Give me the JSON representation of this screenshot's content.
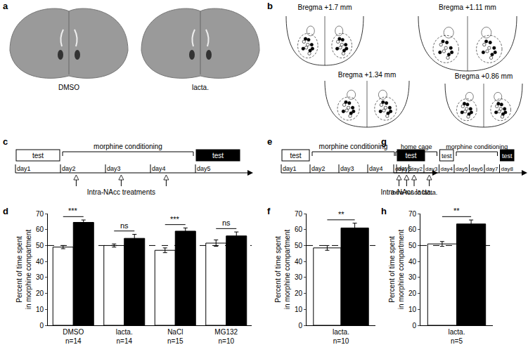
{
  "chart_data": [
    {
      "type": "bar",
      "panel_label": "d",
      "grid": false,
      "categories": [
        "DMSO",
        "lacta.",
        "NaCl",
        "MG132"
      ],
      "n_labels": [
        "n=14",
        "n=14",
        "n=15",
        "n=10"
      ],
      "series": [
        {
          "color": "#ffffff",
          "values": [
            49,
            50,
            47,
            51.5
          ],
          "errors": [
            1,
            1,
            1.5,
            2
          ]
        },
        {
          "color": "#000000",
          "values": [
            64.5,
            54.5,
            59,
            56
          ],
          "errors": [
            1.5,
            2.5,
            2,
            2.5
          ]
        }
      ],
      "significance": [
        "***",
        "ns",
        "***",
        "ns"
      ],
      "reference_value": 50,
      "y_label": [
        "Percent of time spent",
        "in morphine compartment"
      ],
      "ylim": [
        0,
        70
      ],
      "yticks": [
        0,
        10,
        20,
        30,
        40,
        50,
        60,
        70
      ]
    },
    {
      "type": "bar",
      "panel_label": "f",
      "grid": false,
      "categories": [
        "lacta."
      ],
      "n_labels": [
        "n=10"
      ],
      "series": [
        {
          "color": "#ffffff",
          "values": [
            48.5
          ],
          "errors": [
            1.5
          ]
        },
        {
          "color": "#000000",
          "values": [
            61
          ],
          "errors": [
            3
          ]
        }
      ],
      "significance": [
        "**"
      ],
      "reference_value": 50,
      "y_label": [
        "Percent of time spent",
        "in morphine compartment"
      ],
      "ylim": [
        0,
        70
      ],
      "yticks": [
        0,
        10,
        20,
        30,
        40,
        50,
        60,
        70
      ]
    },
    {
      "type": "bar",
      "panel_label": "h",
      "grid": false,
      "categories": [
        "lacta."
      ],
      "n_labels": [
        "n=5"
      ],
      "series": [
        {
          "color": "#ffffff",
          "values": [
            51
          ],
          "errors": [
            1.5
          ]
        },
        {
          "color": "#000000",
          "values": [
            63.5
          ],
          "errors": [
            2.5
          ]
        }
      ],
      "significance": [
        "**"
      ],
      "reference_value": 50,
      "y_label": [
        "Percent of time spent",
        "in morphine compartment"
      ],
      "ylim": [
        0,
        70
      ],
      "yticks": [
        0,
        10,
        20,
        30,
        40,
        50,
        60,
        70
      ]
    }
  ],
  "panels": {
    "a": {
      "label": "a",
      "captions": [
        "DMSO",
        "lacta."
      ]
    },
    "b": {
      "label": "b",
      "sections": [
        "Bregma +1.7 mm",
        "Bregma +1.11 mm",
        "Bregma +1.34 mm",
        "Bregma +0.86 mm"
      ]
    },
    "c": {
      "label": "c",
      "days": [
        "day1",
        "day2",
        "day3",
        "day4",
        "day5"
      ],
      "events": [
        {
          "kind": "open_box",
          "text": "test",
          "from": 0,
          "to": 0
        },
        {
          "kind": "bracket",
          "text": "morphine conditioning",
          "from": 1,
          "to": 3
        },
        {
          "kind": "filled_box",
          "text": "test",
          "from": 4,
          "to": 4
        }
      ],
      "arrows": {
        "text": "Intra-NAcc treatments",
        "at": [
          1,
          2,
          3
        ]
      }
    },
    "e": {
      "label": "e",
      "days": [
        "day1",
        "day2",
        "day3",
        "day4",
        "day5"
      ],
      "events": [
        {
          "kind": "open_box",
          "text": "test",
          "from": 0,
          "to": 0
        },
        {
          "kind": "bracket",
          "text": "morphine conditioning",
          "from": 1,
          "to": 3
        },
        {
          "kind": "filled_box",
          "text": "test",
          "from": 4,
          "to": 4
        }
      ],
      "arrows": {
        "text": "Intra-NAcc lacta.",
        "at": [
          4
        ]
      }
    },
    "g": {
      "label": "g",
      "days": [
        "day1",
        "day2",
        "day3",
        "day4",
        "day5",
        "day6",
        "day7",
        "day8"
      ],
      "events": [
        {
          "kind": "bracket",
          "text": "home cage",
          "from": 0,
          "to": 2
        },
        {
          "kind": "open_box",
          "text": "test",
          "from": 3,
          "to": 3
        },
        {
          "kind": "bracket",
          "text": "morphine conditioning",
          "from": 4,
          "to": 6
        },
        {
          "kind": "filled_box",
          "text": "test",
          "from": 7,
          "to": 7
        }
      ],
      "arrows": {
        "text": "Intra-NAcc lacta.",
        "at": [
          0,
          1,
          2
        ]
      }
    }
  }
}
